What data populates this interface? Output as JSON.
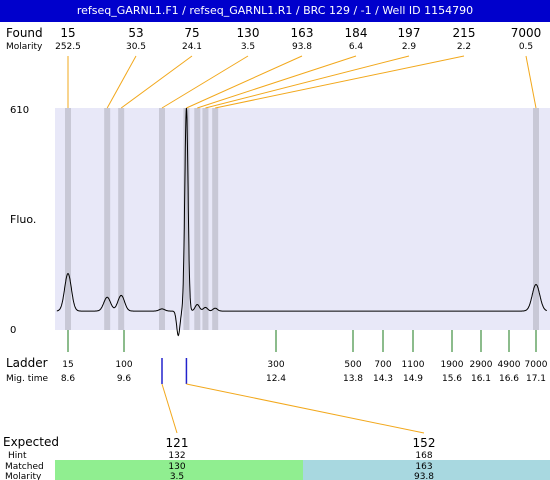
{
  "title": "refseq_GARNL1.F1 / refseq_GARNL1.R1  / BRC 129 / -1  / Well ID 1154790",
  "labels": {
    "found": "Found",
    "molarity": "Molarity",
    "fluo": "Fluo.",
    "ladder": "Ladder",
    "mig_time": "Mig. time",
    "expected": "Expected",
    "hint": "Hint",
    "matched": "Matched",
    "molarity_bottom": "Molarity"
  },
  "colors": {
    "title_bg": "#0000cc",
    "plot_bg": "#e8e8f8",
    "band": "#c8c8d6",
    "connector": "#f2a81c",
    "ladder_tick": "#1a7a1a",
    "marker": "#2222cc",
    "matched_left": "#90ee90",
    "matched_right": "#a8d8e0"
  },
  "chart_data": {
    "type": "line",
    "ylim": [
      0,
      610
    ],
    "ytick_labels": [
      "0",
      "610"
    ],
    "found": [
      {
        "size": "15",
        "molarity": "252.5",
        "time": 8.6
      },
      {
        "size": "53",
        "molarity": "30.5",
        "time": 9.3
      },
      {
        "size": "75",
        "molarity": "24.1",
        "time": 9.55
      },
      {
        "size": "130",
        "molarity": "3.5",
        "time": 10.3
      },
      {
        "size": "163",
        "molarity": "93.8",
        "time": 10.75
      },
      {
        "size": "184",
        "molarity": "6.4",
        "time": 10.95
      },
      {
        "size": "197",
        "molarity": "2.9",
        "time": 11.1
      },
      {
        "size": "215",
        "molarity": "2.2",
        "time": 11.28
      },
      {
        "size": "7000",
        "molarity": "0.5",
        "time": 17.1
      }
    ],
    "ladder": [
      {
        "size": "15",
        "time": "8.6"
      },
      {
        "size": "100",
        "time": "9.6"
      },
      {
        "size": "300",
        "time": "12.4"
      },
      {
        "size": "500",
        "time": "13.8"
      },
      {
        "size": "700",
        "time": "14.3"
      },
      {
        "size": "1100",
        "time": "14.9"
      },
      {
        "size": "1900",
        "time": "15.6"
      },
      {
        "size": "2900",
        "time": "16.1"
      },
      {
        "size": "4900",
        "time": "16.6"
      },
      {
        "size": "7000",
        "time": "17.1"
      }
    ],
    "trace_time_range": [
      8.4,
      17.3
    ],
    "trace_baseline": 52,
    "trace_peaks": [
      {
        "time": 8.6,
        "height": 155,
        "width": 0.06
      },
      {
        "time": 9.3,
        "height": 90,
        "width": 0.06
      },
      {
        "time": 9.55,
        "height": 95,
        "width": 0.06
      },
      {
        "time": 10.3,
        "height": 58,
        "width": 0.05
      },
      {
        "time": 10.75,
        "height": 610,
        "width": 0.03
      },
      {
        "time": 10.95,
        "height": 70,
        "width": 0.04
      },
      {
        "time": 11.1,
        "height": 62,
        "width": 0.04
      },
      {
        "time": 11.28,
        "height": 60,
        "width": 0.04
      },
      {
        "time": 17.1,
        "height": 125,
        "width": 0.07
      }
    ],
    "trace_dip": {
      "time": 10.6,
      "depth": 15,
      "width": 0.03
    },
    "expected": [
      {
        "size": "121",
        "hint": "132",
        "matched": "130",
        "molarity": "3.5",
        "time": 10.3
      },
      {
        "size": "152",
        "hint": "168",
        "matched": "163",
        "molarity": "93.8",
        "time": 10.75
      }
    ]
  }
}
